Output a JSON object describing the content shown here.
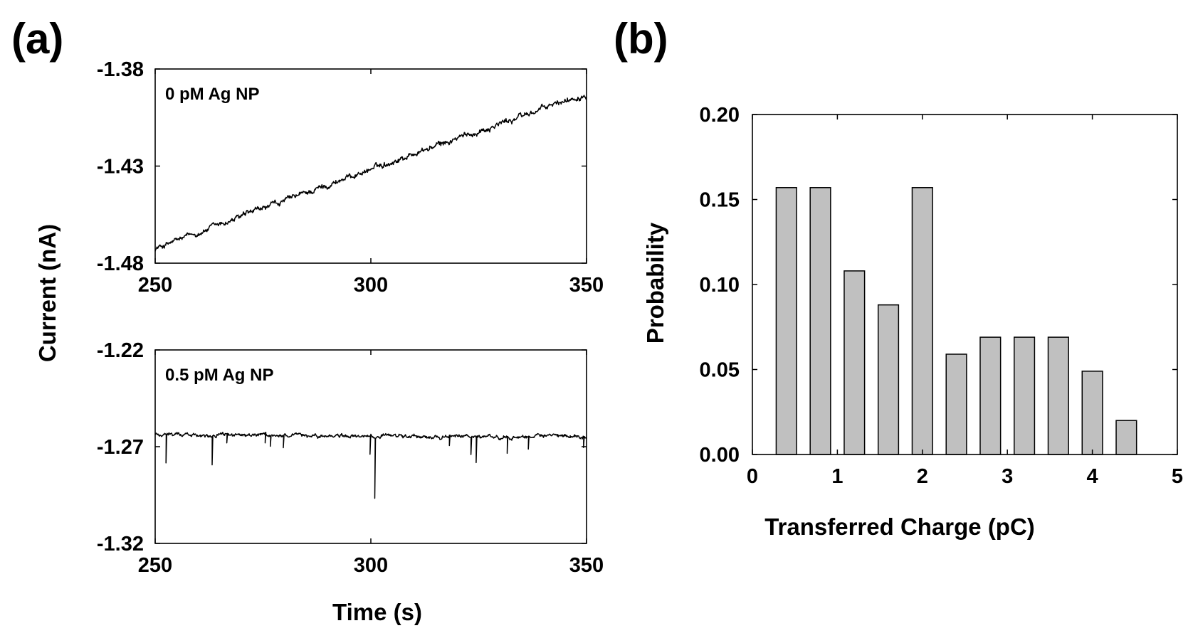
{
  "panel_a_label": "(a)",
  "panel_b_label": "(b)",
  "chart_data": [
    {
      "type": "line",
      "title": "0 pM Ag NP",
      "xlabel": "Time (s)",
      "ylabel": "Current (nA)",
      "xlim": [
        250,
        350
      ],
      "ylim": [
        -1.48,
        -1.38
      ],
      "xticks": [
        250,
        300,
        350
      ],
      "xtick_labels": [
        "250",
        "300",
        "350"
      ],
      "yticks": [
        -1.38,
        -1.43,
        -1.48
      ],
      "ytick_labels": [
        "-1.38",
        "-1.43",
        "-1.48"
      ],
      "baseline": {
        "x": [
          250,
          300,
          350
        ],
        "y": [
          -1.4726,
          -1.4315,
          -1.3925
        ]
      },
      "noise_amplitude": 0.0018,
      "spikes": []
    },
    {
      "type": "line",
      "title": "0.5 pM Ag NP",
      "xlabel": "Time (s)",
      "ylabel": "Current (nA)",
      "xlim": [
        250,
        350
      ],
      "ylim": [
        -1.32,
        -1.22
      ],
      "xticks": [
        250,
        300,
        350
      ],
      "xtick_labels": [
        "250",
        "300",
        "350"
      ],
      "yticks": [
        -1.22,
        -1.27,
        -1.32
      ],
      "ytick_labels": [
        "-1.22",
        "-1.27",
        "-1.32"
      ],
      "baseline": {
        "x": [
          250,
          300,
          350
        ],
        "y": [
          -1.2636,
          -1.2648,
          -1.2648
        ]
      },
      "noise_amplitude": 0.0012,
      "spikes": [
        {
          "t": 252.5,
          "depth": 0.0147
        },
        {
          "t": 263.2,
          "depth": 0.0147
        },
        {
          "t": 266.6,
          "depth": 0.0047
        },
        {
          "t": 275.5,
          "depth": 0.0054
        },
        {
          "t": 276.7,
          "depth": 0.0052
        },
        {
          "t": 279.7,
          "depth": 0.0062
        },
        {
          "t": 299.8,
          "depth": 0.0097
        },
        {
          "t": 300.9,
          "depth": 0.0307
        },
        {
          "t": 318.2,
          "depth": 0.0054
        },
        {
          "t": 323.2,
          "depth": 0.0087
        },
        {
          "t": 324.4,
          "depth": 0.0127
        },
        {
          "t": 331.6,
          "depth": 0.0087
        },
        {
          "t": 336.5,
          "depth": 0.0067
        },
        {
          "t": 349.3,
          "depth": 0.0057
        }
      ]
    },
    {
      "type": "bar",
      "title": "",
      "xlabel": "Transferred Charge (pC)",
      "ylabel": "Probability",
      "xlim": [
        0,
        5
      ],
      "ylim": [
        0,
        0.2
      ],
      "xticks": [
        0,
        1,
        2,
        3,
        4,
        5
      ],
      "xtick_labels": [
        "0",
        "1",
        "2",
        "3",
        "4",
        "5"
      ],
      "yticks": [
        0,
        0.05,
        0.1,
        0.15,
        0.2
      ],
      "ytick_labels": [
        "0.00",
        "0.05",
        "0.10",
        "0.15",
        "0.20"
      ],
      "bar_width": 0.24,
      "bar_centers": [
        0.4,
        0.8,
        1.2,
        1.6,
        2.0,
        2.4,
        2.8,
        3.2,
        3.6,
        4.0,
        4.4
      ],
      "values": [
        0.157,
        0.157,
        0.108,
        0.088,
        0.157,
        0.059,
        0.069,
        0.069,
        0.069,
        0.049,
        0.02
      ]
    }
  ]
}
